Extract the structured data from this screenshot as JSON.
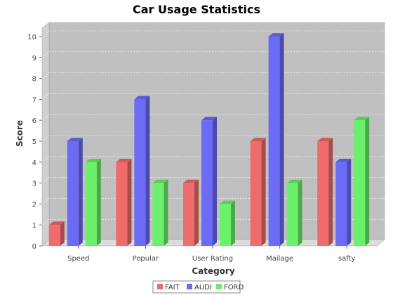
{
  "chart_data": {
    "type": "bar",
    "title": "Car Usage Statistics",
    "xlabel": "Category",
    "ylabel": "Score",
    "categories": [
      "Speed",
      "Popular",
      "User Rating",
      "Mailage",
      "safty"
    ],
    "series": [
      {
        "name": "FAIT",
        "color": "#f06b6b",
        "values": [
          1,
          4,
          3,
          5,
          5
        ]
      },
      {
        "name": "AUDI",
        "color": "#6b6bf5",
        "values": [
          5,
          7,
          6,
          10,
          4
        ]
      },
      {
        "name": "FORD",
        "color": "#6bf06b",
        "values": [
          4,
          3,
          2,
          3,
          6
        ]
      }
    ],
    "yticks": [
      "0",
      "1",
      "2",
      "3",
      "4",
      "5",
      "6",
      "7",
      "8",
      "9",
      "10"
    ],
    "ylim": [
      0,
      10
    ],
    "grid": true,
    "legend_position": "bottom-center",
    "render": "3d"
  }
}
